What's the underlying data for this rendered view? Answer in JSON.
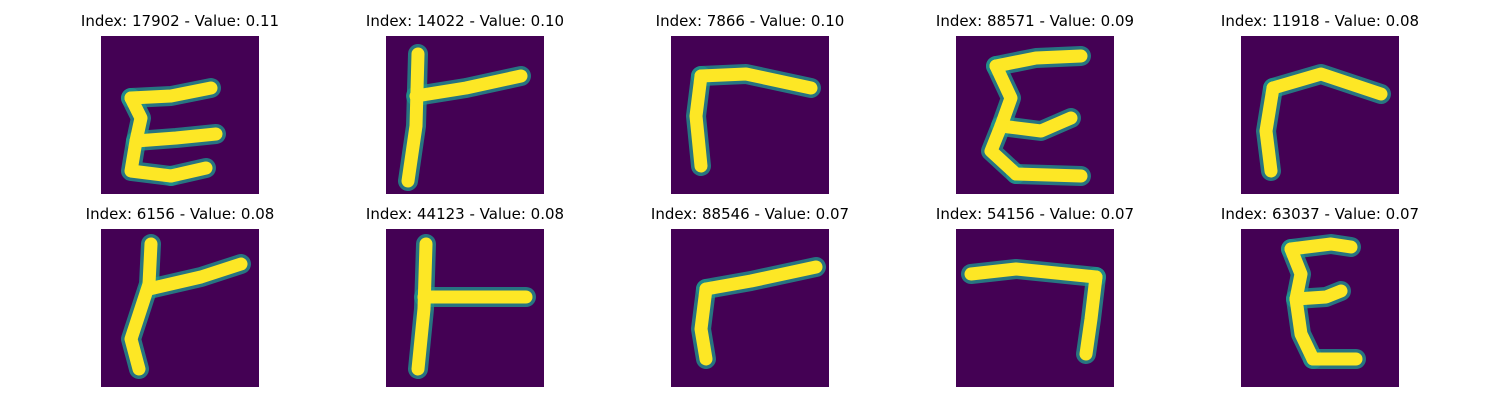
{
  "colors": {
    "background": "#440154",
    "stroke": "#fde725",
    "edge": "#21918c"
  },
  "panels": [
    {
      "title": "Index: 17902 - Value: 0.11",
      "glyph": "sigma-like"
    },
    {
      "title": "Index: 14022 - Value: 0.10",
      "glyph": "tee-like"
    },
    {
      "title": "Index: 7866 - Value: 0.10",
      "glyph": "gamma-like"
    },
    {
      "title": "Index: 88571 - Value: 0.09",
      "glyph": "sigma-like"
    },
    {
      "title": "Index: 11918 - Value: 0.08",
      "glyph": "gamma-like"
    },
    {
      "title": "Index: 6156 - Value: 0.08",
      "glyph": "tee-like"
    },
    {
      "title": "Index: 44123 - Value: 0.08",
      "glyph": "tee-like"
    },
    {
      "title": "Index: 88546 - Value: 0.07",
      "glyph": "gamma-like"
    },
    {
      "title": "Index: 54156 - Value: 0.07",
      "glyph": "hook-like"
    },
    {
      "title": "Index: 63037 - Value: 0.07",
      "glyph": "sigma-like"
    }
  ]
}
